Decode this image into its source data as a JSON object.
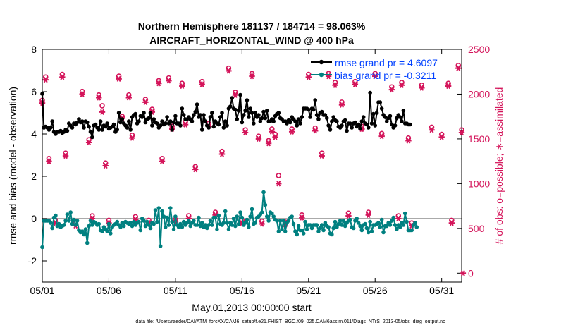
{
  "chart_data": {
    "type": "line",
    "title_line1": "Northern Hemisphere 181137 / 184714 = 98.063%",
    "title_line2": "AIRCRAFT_HORIZONTAL_WIND @ 400 hPa",
    "xlabel": "May.01,2013 00:00:00 start",
    "ylabel_left": "rmse and bias (model - observation)",
    "ylabel_right": "# of obs: o=possible; ∗=assimilated",
    "footer": "data file: /Users/raeder/DAI/ATM_forcXX/CAM6_setup/f.e21.FHIST_BGC.f09_025.CAM6assim.011/Diags_NTrS_2013-05/obs_diag_output.nc",
    "x_range_days": [
      0,
      31.5
    ],
    "x_ticks": [
      {
        "day": 0,
        "label": "05/01"
      },
      {
        "day": 5,
        "label": "05/06"
      },
      {
        "day": 10,
        "label": "05/11"
      },
      {
        "day": 15,
        "label": "05/16"
      },
      {
        "day": 20,
        "label": "05/21"
      },
      {
        "day": 25,
        "label": "05/26"
      },
      {
        "day": 30,
        "label": "05/31"
      }
    ],
    "ylim_left": [
      -3,
      8
    ],
    "yticks_left": [
      -2,
      0,
      2,
      4,
      6,
      8
    ],
    "ylim_right": [
      -100,
      2500
    ],
    "yticks_right": [
      0,
      500,
      1000,
      1500,
      2000,
      2500
    ],
    "grid": false,
    "legend_position": "top-right",
    "colors": {
      "rmse": "#000000",
      "bias": "#008080",
      "obs": "#d4145a",
      "axes": "#000000",
      "zero_line": "#aaaaaa",
      "legend_text": "#0040ff"
    },
    "series": [
      {
        "name": "rmse grand pr = 4.6097",
        "values": [
          5.9,
          4.3,
          4.35,
          4.3,
          4.2,
          4.3,
          4.6,
          4.1,
          4.0,
          4.1,
          4.1,
          4.15,
          4.05,
          4.1,
          4.2,
          4.15,
          4.5,
          4.4,
          4.3,
          4.5,
          4.45,
          4.55,
          4.7,
          4.55,
          4.6,
          4.3,
          4.6,
          4.55,
          4.35,
          4.1,
          3.85,
          4.4,
          4.45,
          4.3,
          4.2,
          4.6,
          4.2,
          4.4,
          4.35,
          4.5,
          4.25,
          4.3,
          4.35,
          4.45,
          4.1,
          4.2,
          5.0,
          4.55,
          4.7,
          4.5,
          4.4,
          4.3,
          4.6,
          4.2,
          4.8,
          4.9,
          4.95,
          4.5,
          4.6,
          4.85,
          4.8,
          5.0,
          4.55,
          4.7,
          4.75,
          5.0,
          4.4,
          4.7,
          4.55,
          4.5,
          4.3,
          4.4,
          4.6,
          4.45,
          4.5,
          4.8,
          4.5,
          4.6,
          4.2,
          4.55,
          4.85,
          4.5,
          4.5,
          4.4,
          5.2,
          4.9,
          4.7,
          4.7,
          4.8,
          4.7,
          4.6,
          4.9,
          5.05,
          5.4,
          4.8,
          4.9,
          4.2,
          4.9,
          4.6,
          4.4,
          4.3,
          4.8,
          5.0,
          4.35,
          4.6,
          4.5,
          4.45,
          4.8,
          5.0,
          4.3,
          4.6,
          4.4,
          5.2,
          5.3,
          5.7,
          5.2,
          5.15,
          4.7,
          5.1,
          5.85,
          4.55,
          4.9,
          5.1,
          5.6,
          4.8,
          5.2,
          5.0,
          4.5,
          5.0,
          4.8,
          4.9,
          4.6,
          4.75,
          5.05,
          4.75,
          5.1,
          4.6,
          4.6,
          4.7,
          4.6,
          4.85,
          4.95,
          5.0,
          4.75,
          4.7,
          4.6,
          4.6,
          4.5,
          4.65,
          4.55,
          4.8,
          4.7,
          4.6,
          4.4,
          4.7,
          4.5,
          4.8,
          5.2,
          5.2,
          5.2,
          5.15,
          4.8,
          5.2,
          5.15,
          5.6,
          4.9,
          4.7,
          5.0,
          5.05,
          4.9,
          4.9,
          4.75,
          4.4,
          4.2,
          4.6,
          4.8,
          4.65,
          4.6,
          4.35,
          4.3,
          4.4,
          4.6,
          4.65,
          4.15,
          4.5,
          4.5,
          4.3,
          4.5,
          4.55,
          4.35,
          4.45,
          4.25,
          4.6,
          4.8,
          4.5,
          4.45,
          4.3,
          5.95,
          4.5,
          4.95,
          4.4,
          5.0,
          5.5,
          5.5,
          5.2,
          4.9,
          4.8,
          4.6,
          4.75,
          4.85,
          4.45,
          4.3,
          4.4,
          4.75,
          4.9,
          4.8,
          4.6,
          5.1,
          4.5,
          4.5,
          4.45,
          4.45
        ]
      },
      {
        "name": "bias grand pr = -0.3211",
        "values": [
          -1.35,
          -0.1,
          -0.1,
          -0.1,
          -0.1,
          -0.2,
          -0.45,
          0.05,
          0.15,
          -0.35,
          -0.25,
          -0.4,
          -0.35,
          -0.3,
          -0.1,
          0.2,
          -0.1,
          0.3,
          -0.25,
          -0.05,
          -0.3,
          -0.1,
          -0.55,
          -0.65,
          -0.6,
          -0.75,
          -0.5,
          -1.15,
          -0.35,
          -0.1,
          -0.3,
          -0.15,
          -0.2,
          -0.3,
          -0.25,
          -0.55,
          -0.6,
          -0.4,
          -0.5,
          -0.6,
          -0.25,
          -0.7,
          -0.4,
          -0.3,
          -0.25,
          -0.15,
          -0.3,
          -0.4,
          -0.2,
          -0.35,
          -0.15,
          -0.2,
          -0.25,
          -0.2,
          -0.35,
          -0.15,
          -0.3,
          -0.2,
          -0.15,
          -0.55,
          0.0,
          -0.1,
          -0.35,
          -0.15,
          -0.3,
          -0.45,
          -0.2,
          -0.25,
          0.4,
          -0.15,
          0.5,
          -1.3,
          0.35,
          0.1,
          -0.4,
          0.05,
          -0.3,
          0.5,
          -0.15,
          -0.5,
          0.1,
          -0.3,
          -0.4,
          -0.25,
          -0.4,
          -0.15,
          -0.3,
          -0.2,
          -0.1,
          -0.35,
          -0.2,
          -0.1,
          -0.3,
          -0.3,
          0.05,
          -0.35,
          -0.2,
          -0.4,
          -0.3,
          -0.45,
          -0.3,
          -0.1,
          -0.3,
          0.05,
          0.05,
          -0.5,
          0.15,
          -0.25,
          -0.3,
          -0.2,
          0.35,
          -0.2,
          -0.5,
          -0.2,
          -0.3,
          0.0,
          -0.35,
          0.1,
          -0.25,
          0.3,
          0.05,
          -0.3,
          -0.2,
          -0.05,
          -0.4,
          0.1,
          0.45,
          -0.25,
          -0.2,
          0.05,
          0.1,
          0.2,
          0.3,
          1.25,
          0.65,
          0.1,
          -0.1,
          0.3,
          0.25,
          0.1,
          -0.05,
          -0.1,
          -0.6,
          -0.1,
          -0.5,
          -0.1,
          -0.6,
          -0.2,
          -0.1,
          0.05,
          0.1,
          -0.25,
          -0.6,
          -0.75,
          -0.35,
          -0.55,
          -0.55,
          -0.7,
          -0.15,
          -0.5,
          -0.3,
          -0.3,
          -0.45,
          -0.3,
          -0.3,
          -0.3,
          -0.6,
          -0.45,
          -0.3,
          -0.55,
          -0.2,
          -0.35,
          -0.4,
          -0.7,
          -0.75,
          -0.45,
          -0.15,
          -0.4,
          -0.25,
          -0.1,
          -0.3,
          -0.1,
          -0.35,
          -0.2,
          -0.1,
          -0.05,
          -0.4,
          -0.45,
          -0.1,
          0.0,
          -0.2,
          -0.35,
          -0.55,
          -0.3,
          -0.25,
          -0.45,
          -0.65,
          -0.15,
          -0.6,
          -0.3,
          -0.3,
          -0.25,
          -0.2,
          -0.4,
          -0.05,
          -0.65,
          -0.35,
          -0.35,
          -0.2,
          -0.3,
          -0.1,
          0.05,
          -0.3,
          -0.5,
          -0.3,
          -0.4,
          -0.2,
          -0.3,
          0.25,
          -0.15,
          -0.55,
          -0.55,
          -0.55,
          -0.3,
          -0.2,
          -0.4
        ]
      }
    ],
    "obs_series": [
      {
        "name": "possible",
        "marker": "o",
        "points": [
          [
            0,
            1930
          ],
          [
            0.25,
            2190
          ],
          [
            0.5,
            1280
          ],
          [
            1,
            590
          ],
          [
            1.5,
            2220
          ],
          [
            1.75,
            1340
          ],
          [
            2.5,
            560
          ],
          [
            3,
            2030
          ],
          [
            3.5,
            1490
          ],
          [
            3.75,
            640
          ],
          [
            4.25,
            1990
          ],
          [
            4.5,
            1870
          ],
          [
            4.75,
            1230
          ],
          [
            5,
            590
          ],
          [
            5.75,
            2200
          ],
          [
            6,
            1750
          ],
          [
            6.5,
            1990
          ],
          [
            6.75,
            1540
          ],
          [
            7,
            630
          ],
          [
            7.75,
            1940
          ],
          [
            8,
            590
          ],
          [
            8.25,
            1830
          ],
          [
            8.75,
            2150
          ],
          [
            9,
            1280
          ],
          [
            9.5,
            2180
          ],
          [
            9.75,
            1640
          ],
          [
            10,
            600
          ],
          [
            10.5,
            2120
          ],
          [
            10.75,
            1690
          ],
          [
            11,
            640
          ],
          [
            11.5,
            1190
          ],
          [
            12,
            2140
          ],
          [
            12.5,
            1670
          ],
          [
            13,
            680
          ],
          [
            13.5,
            1360
          ],
          [
            14,
            2290
          ],
          [
            14.5,
            2020
          ],
          [
            15,
            590
          ],
          [
            15.25,
            1600
          ],
          [
            15.75,
            2230
          ],
          [
            16.25,
            1530
          ],
          [
            16.5,
            580
          ],
          [
            17,
            1480
          ],
          [
            17.25,
            1610
          ],
          [
            17.5,
            1550
          ],
          [
            17.75,
            1090
          ],
          [
            18.25,
            570
          ],
          [
            18.75,
            1610
          ],
          [
            19.5,
            650
          ],
          [
            20,
            2220
          ],
          [
            20.5,
            1620
          ],
          [
            21,
            1340
          ],
          [
            21.5,
            2230
          ],
          [
            22,
            2130
          ],
          [
            22.5,
            1910
          ],
          [
            23,
            670
          ],
          [
            23.5,
            2140
          ],
          [
            24,
            1640
          ],
          [
            24.5,
            680
          ],
          [
            25,
            2230
          ],
          [
            25.5,
            1560
          ],
          [
            26.25,
            2080
          ],
          [
            26.75,
            640
          ],
          [
            27,
            2130
          ],
          [
            27.5,
            1510
          ],
          [
            27.75,
            560
          ],
          [
            28.5,
            2100
          ],
          [
            29.25,
            1630
          ],
          [
            30,
            1550
          ],
          [
            30.5,
            2120
          ],
          [
            30.75,
            590
          ],
          [
            31.25,
            2320
          ],
          [
            31.5,
            1600
          ]
        ]
      },
      {
        "name": "assimilated",
        "marker": "*",
        "points": [
          [
            0,
            1900
          ],
          [
            0.25,
            2160
          ],
          [
            0.5,
            1250
          ],
          [
            1,
            560
          ],
          [
            1.5,
            2190
          ],
          [
            1.75,
            1310
          ],
          [
            2.5,
            530
          ],
          [
            3,
            2000
          ],
          [
            3.5,
            1460
          ],
          [
            3.75,
            610
          ],
          [
            4.25,
            1960
          ],
          [
            4.5,
            1800
          ],
          [
            4.75,
            1200
          ],
          [
            5,
            560
          ],
          [
            5.75,
            2170
          ],
          [
            6,
            1730
          ],
          [
            6.5,
            1960
          ],
          [
            6.75,
            1510
          ],
          [
            7,
            600
          ],
          [
            7.75,
            1910
          ],
          [
            8,
            560
          ],
          [
            8.25,
            1800
          ],
          [
            8.75,
            2120
          ],
          [
            9,
            1250
          ],
          [
            9.5,
            2150
          ],
          [
            9.75,
            1610
          ],
          [
            10,
            570
          ],
          [
            10.5,
            2090
          ],
          [
            10.75,
            1660
          ],
          [
            11,
            610
          ],
          [
            11.5,
            1160
          ],
          [
            12,
            2110
          ],
          [
            12.5,
            1640
          ],
          [
            13,
            650
          ],
          [
            13.5,
            1330
          ],
          [
            14,
            2260
          ],
          [
            14.5,
            1990
          ],
          [
            15,
            560
          ],
          [
            15.25,
            1570
          ],
          [
            15.75,
            2200
          ],
          [
            16.25,
            1500
          ],
          [
            16.5,
            550
          ],
          [
            17,
            1450
          ],
          [
            17.25,
            1580
          ],
          [
            17.5,
            1520
          ],
          [
            17.75,
            1000
          ],
          [
            18.25,
            540
          ],
          [
            18.75,
            1580
          ],
          [
            19.5,
            620
          ],
          [
            20,
            2190
          ],
          [
            20.5,
            1590
          ],
          [
            21,
            1310
          ],
          [
            21.5,
            2200
          ],
          [
            22,
            2100
          ],
          [
            22.5,
            1880
          ],
          [
            23,
            640
          ],
          [
            23.5,
            2110
          ],
          [
            24,
            1610
          ],
          [
            24.5,
            650
          ],
          [
            25,
            2200
          ],
          [
            25.5,
            1530
          ],
          [
            26.25,
            2050
          ],
          [
            26.75,
            610
          ],
          [
            27,
            2100
          ],
          [
            27.5,
            1480
          ],
          [
            27.75,
            530
          ],
          [
            28.5,
            2070
          ],
          [
            29.25,
            1600
          ],
          [
            30,
            1520
          ],
          [
            30.5,
            2090
          ],
          [
            30.75,
            560
          ],
          [
            31.25,
            2290
          ],
          [
            31.5,
            1570
          ],
          [
            31.6,
            0
          ]
        ]
      }
    ]
  }
}
